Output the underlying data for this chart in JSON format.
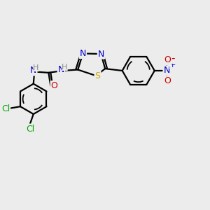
{
  "background_color": "#ececec",
  "colors": {
    "C": "#000000",
    "N": "#0000cc",
    "O": "#cc0000",
    "S": "#ccaa00",
    "Cl": "#00aa00",
    "H": "#888888",
    "bond": "#000000"
  },
  "layout": {
    "xlim": [
      0.0,
      1.0
    ],
    "ylim": [
      0.0,
      1.0
    ]
  }
}
